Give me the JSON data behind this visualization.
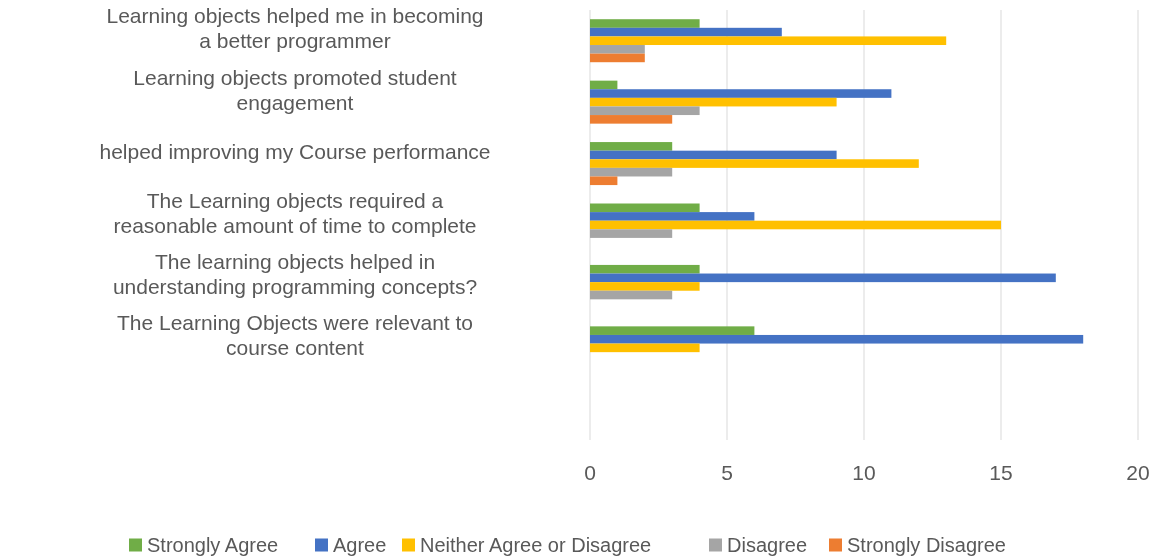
{
  "chart_data": {
    "type": "bar",
    "orientation": "horizontal",
    "categories": [
      "Learning objects helped me in becoming a better programmer",
      "Learning objects promoted student engagement",
      "helped improving my Course performance",
      "The Learning objects required a reasonable amount of time to complete",
      "The learning objects helped in understanding programming concepts?",
      "The Learning Objects were relevant to course content",
      null
    ],
    "series": [
      {
        "name": "Strongly Agree",
        "color": "#70ad47",
        "values": [
          4,
          1,
          3,
          4,
          4,
          6,
          null
        ]
      },
      {
        "name": "Agree",
        "color": "#4472c4",
        "values": [
          7,
          11,
          9,
          6,
          17,
          18,
          null
        ]
      },
      {
        "name": "Neither Agree or Disagree",
        "color": "#ffc000",
        "values": [
          13,
          9,
          12,
          15,
          4,
          4,
          null
        ]
      },
      {
        "name": "Disagree",
        "color": "#a5a5a5",
        "values": [
          2,
          4,
          3,
          3,
          3,
          null,
          null
        ]
      },
      {
        "name": "Strongly Disagree",
        "color": "#ed7d31",
        "values": [
          2,
          3,
          1,
          null,
          null,
          null,
          null
        ]
      }
    ],
    "xlim": [
      0,
      20
    ],
    "xticks": [
      0,
      5,
      10,
      15,
      20
    ],
    "grid": "x",
    "legend": "bottom"
  }
}
